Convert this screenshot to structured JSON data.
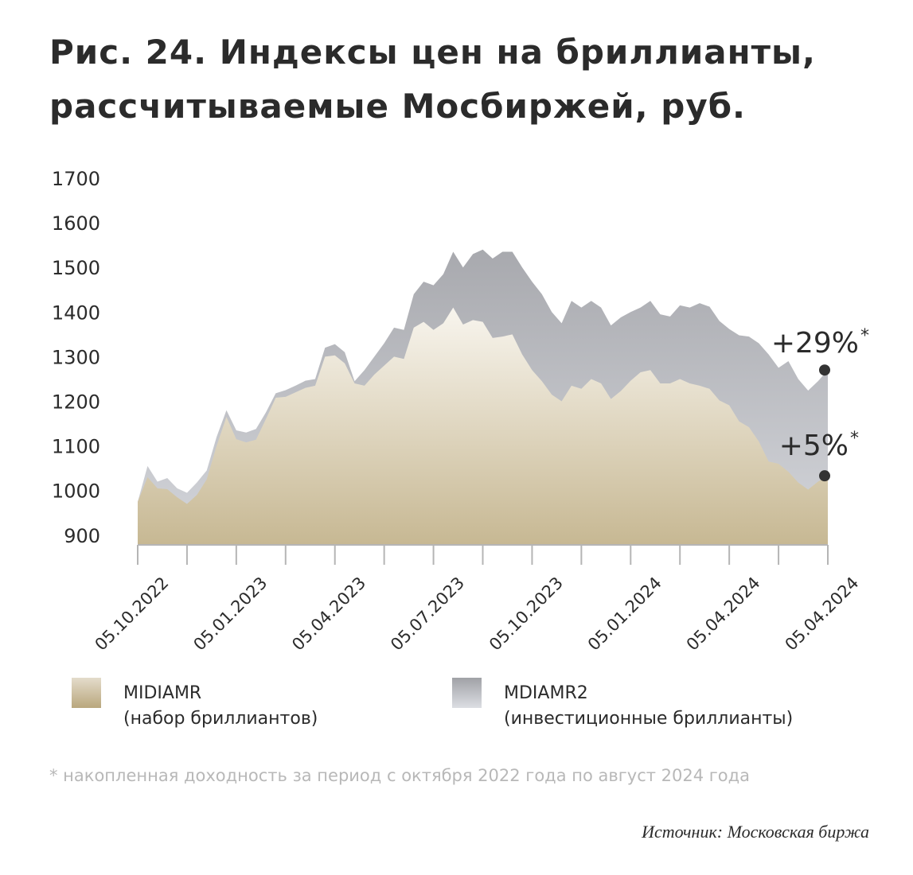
{
  "chart_data": {
    "type": "area",
    "title": [
      "Рис. 24. Индексы цен на бриллианты,",
      "рассчитываемые Мосбиржей, руб."
    ],
    "categories": [
      "05.10.2022",
      null,
      null,
      null,
      null,
      null,
      null,
      null,
      null,
      null,
      "05.01.2023",
      null,
      null,
      null,
      null,
      null,
      null,
      null,
      null,
      null,
      "05.04.2023",
      null,
      null,
      null,
      null,
      null,
      null,
      null,
      null,
      null,
      "05.07.2023",
      null,
      null,
      null,
      null,
      null,
      null,
      null,
      null,
      null,
      "05.10.2023",
      null,
      null,
      null,
      null,
      null,
      null,
      null,
      null,
      null,
      "05.01.2024",
      null,
      null,
      null,
      null,
      null,
      null,
      null,
      null,
      null,
      "05.04.2024",
      null,
      null,
      null,
      null,
      null,
      null,
      null,
      null,
      null,
      "05.04.2024"
    ],
    "series": [
      {
        "name": "MDIAMR2",
        "description": "(инвестиционные бриллианты)",
        "color": "#a8a9ae",
        "values": [
          975,
          1055,
          1020,
          1028,
          1005,
          995,
          1018,
          1045,
          1120,
          1180,
          1135,
          1130,
          1138,
          1175,
          1218,
          1225,
          1235,
          1246,
          1250,
          1320,
          1328,
          1310,
          1245,
          1270,
          1300,
          1330,
          1365,
          1360,
          1440,
          1468,
          1460,
          1485,
          1535,
          1500,
          1530,
          1540,
          1520,
          1535,
          1535,
          1500,
          1468,
          1440,
          1400,
          1375,
          1425,
          1410,
          1425,
          1410,
          1370,
          1388,
          1400,
          1410,
          1425,
          1395,
          1390,
          1415,
          1410,
          1420,
          1412,
          1380,
          1362,
          1348,
          1345,
          1330,
          1305,
          1275,
          1290,
          1250,
          1224,
          1245,
          1270
        ]
      },
      {
        "name": "MIDIAMR",
        "description": "(набор бриллиантов)",
        "color": "#c7b893",
        "values": [
          975,
          1030,
          1005,
          1003,
          985,
          970,
          990,
          1025,
          1100,
          1165,
          1115,
          1108,
          1114,
          1160,
          1208,
          1210,
          1220,
          1230,
          1235,
          1300,
          1303,
          1285,
          1240,
          1235,
          1260,
          1280,
          1300,
          1295,
          1365,
          1378,
          1360,
          1375,
          1410,
          1372,
          1382,
          1378,
          1342,
          1345,
          1350,
          1305,
          1270,
          1245,
          1215,
          1200,
          1235,
          1228,
          1250,
          1240,
          1205,
          1223,
          1246,
          1265,
          1270,
          1240,
          1240,
          1250,
          1240,
          1235,
          1228,
          1202,
          1191,
          1155,
          1142,
          1110,
          1065,
          1060,
          1042,
          1018,
          1002,
          1020,
          1033
        ]
      }
    ],
    "ylim": [
      880,
      1700
    ],
    "yticks": [
      900,
      1000,
      1100,
      1200,
      1300,
      1400,
      1500,
      1600,
      1700
    ],
    "annotations": [
      {
        "text": "+29%",
        "note": "*",
        "series": 0
      },
      {
        "text": "+5%",
        "note": "*",
        "series": 1
      }
    ],
    "footnote": "* накопленная доходность за период с октября 2022 года по август 2024 года",
    "source": "Источник: Московская биржа"
  }
}
